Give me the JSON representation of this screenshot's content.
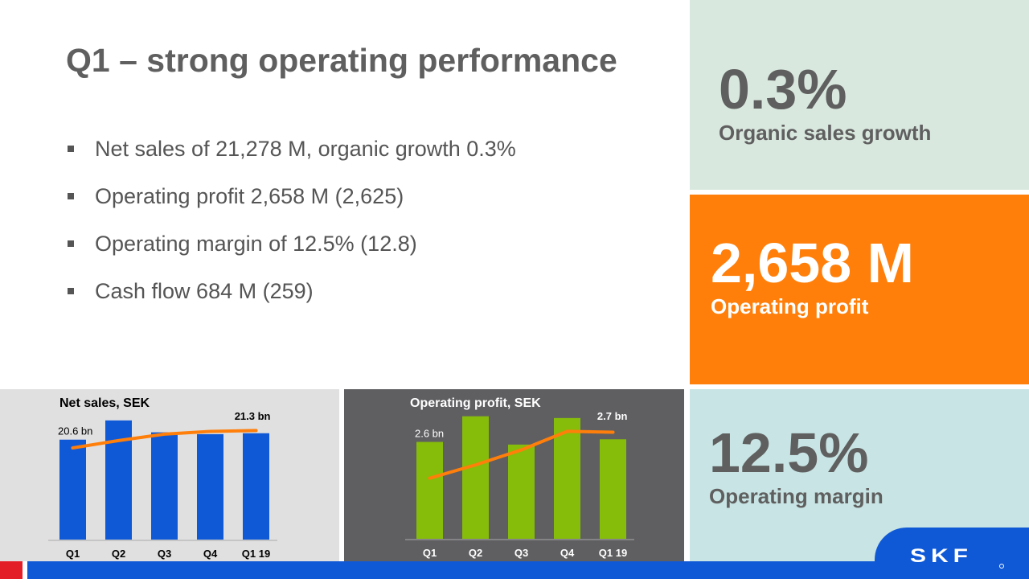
{
  "title": "Q1 – strong operating performance",
  "bullets": [
    "Net sales of 21,278 M, organic growth 0.3%",
    "Operating profit 2,658 M (2,625)",
    "Operating margin of 12.5% (12.8)",
    "Cash flow 684 M (259)"
  ],
  "kpis": [
    {
      "value": "0.3%",
      "label": "Organic sales growth"
    },
    {
      "value": "2,658 M",
      "label": "Operating profit"
    },
    {
      "value": "12.5%",
      "label": "Operating margin"
    }
  ],
  "logo": "SKF",
  "colors": {
    "accent": "#ff7f0a",
    "blue": "#1059d6",
    "green": "#86bc0a",
    "red": "#e41e26"
  },
  "chart_data": [
    {
      "type": "bar",
      "title": "Net sales, SEK",
      "categories": [
        "Q1",
        "Q2",
        "Q3",
        "Q4",
        "Q1 19"
      ],
      "series": [
        {
          "type": "bar",
          "values": [
            20.6,
            22.7,
            21.4,
            21.2,
            21.3
          ]
        },
        {
          "type": "line",
          "values": [
            19.7,
            20.5,
            21.2,
            21.5,
            21.6
          ]
        }
      ],
      "annotations": [
        "20.6 bn",
        "21.3 bn"
      ],
      "bar_color": "#1059d6",
      "line_color": "#ff7f0a"
    },
    {
      "type": "bar",
      "title": "Operating profit, SEK",
      "categories": [
        "Q1",
        "Q2",
        "Q3",
        "Q4",
        "Q1 19"
      ],
      "series": [
        {
          "type": "bar",
          "values": [
            2.63,
            2.92,
            2.6,
            2.9,
            2.66
          ]
        },
        {
          "type": "line",
          "values": [
            2.22,
            2.37,
            2.54,
            2.75,
            2.74
          ]
        }
      ],
      "annotations": [
        "2.6 bn",
        "2.7 bn"
      ],
      "bar_color": "#86bc0a",
      "line_color": "#ff7f0a"
    }
  ]
}
